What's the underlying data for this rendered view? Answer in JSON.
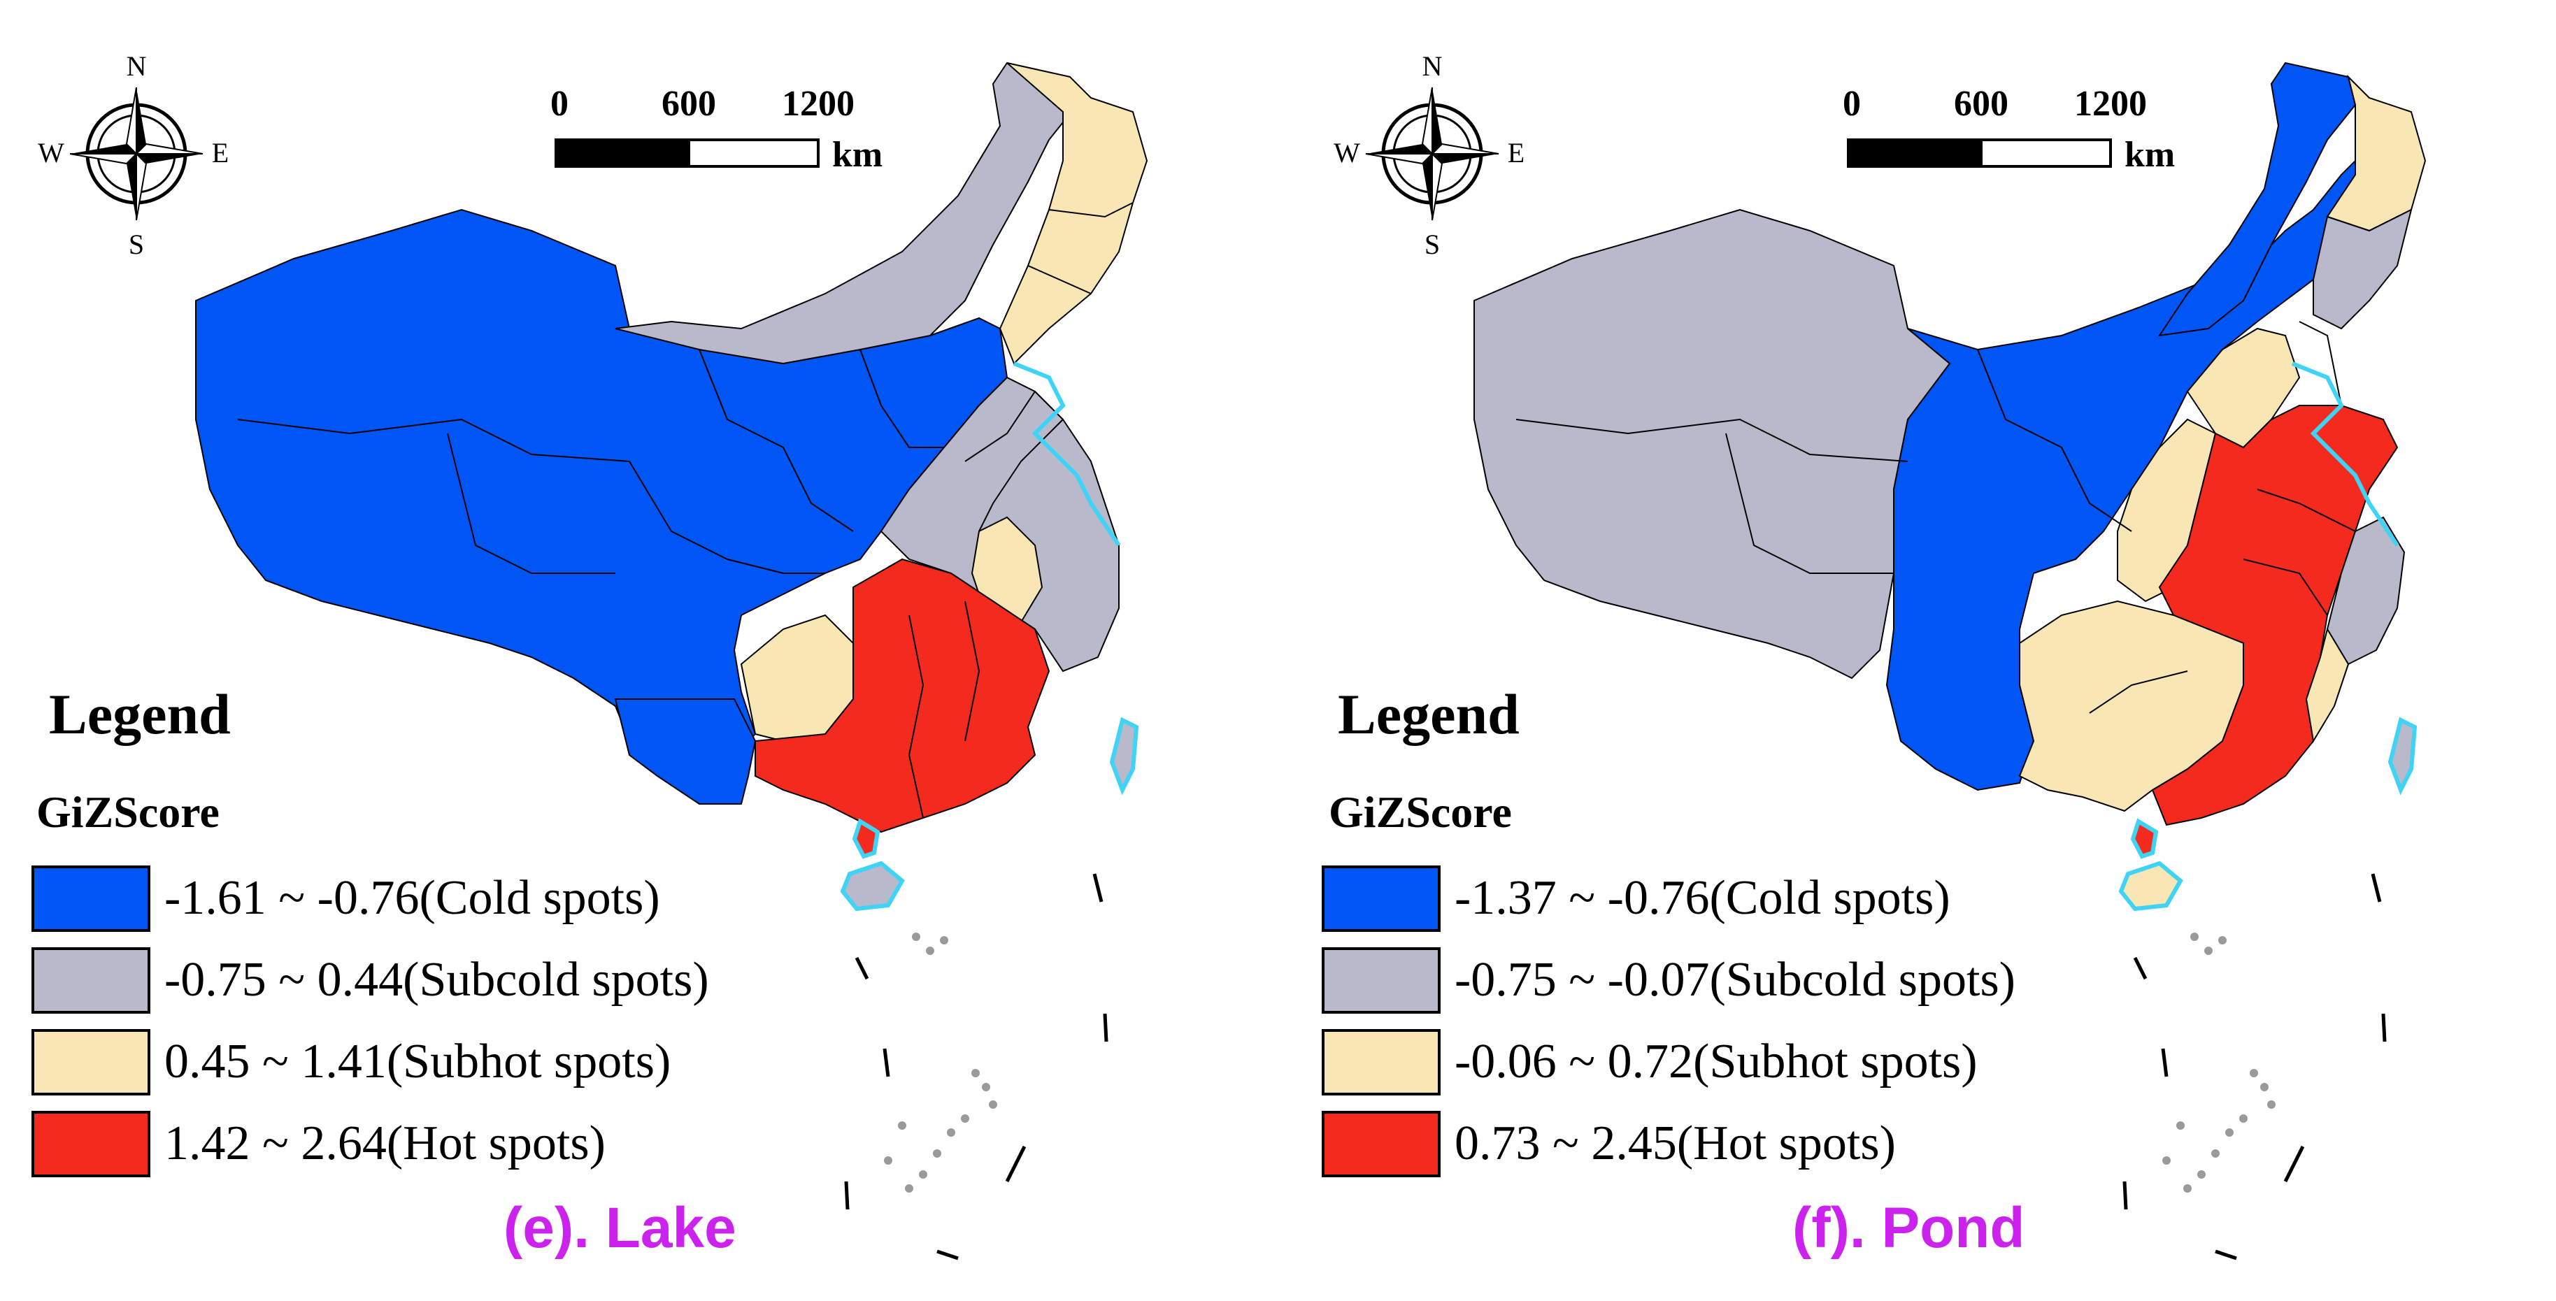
{
  "panels": [
    {
      "caption": "(e). Lake",
      "legend": {
        "title": "Legend",
        "subtitle": "GiZScore",
        "items": [
          {
            "label": "-1.61 ~ -0.76(Cold spots)",
            "color": "#0055f5"
          },
          {
            "label": "-0.75 ~ 0.44(Subcold spots)",
            "color": "#b9b9cc"
          },
          {
            "label": "0.45 ~ 1.41(Subhot spots)",
            "color": "#f8e6b4"
          },
          {
            "label": "1.42 ~ 2.64(Hot spots)",
            "color": "#f52a1f"
          }
        ]
      },
      "scale_bar": {
        "ticks": [
          "0",
          "600",
          "1200"
        ],
        "unit": "km"
      },
      "compass": {
        "n": "N",
        "s": "S",
        "e": "E",
        "w": "W"
      }
    },
    {
      "caption": "(f). Pond",
      "legend": {
        "title": "Legend",
        "subtitle": "GiZScore",
        "items": [
          {
            "label": "-1.37 ~ -0.76(Cold spots)",
            "color": "#0055f5"
          },
          {
            "label": "-0.75 ~ -0.07(Subcold spots)",
            "color": "#b9b9cc"
          },
          {
            "label": "-0.06 ~ 0.72(Subhot spots)",
            "color": "#f8e6b4"
          },
          {
            "label": "0.73 ~ 2.45(Hot spots)",
            "color": "#f52a1f"
          }
        ]
      },
      "scale_bar": {
        "ticks": [
          "0",
          "600",
          "1200"
        ],
        "unit": "km"
      },
      "compass": {
        "n": "N",
        "s": "S",
        "e": "E",
        "w": "W"
      }
    }
  ],
  "colors": {
    "cold": "#0055f5",
    "subcold": "#b9b9cc",
    "subhot": "#f8e6b4",
    "hot": "#f52a1f",
    "coast": "#3fd3f5",
    "caption": "#cc22ee"
  }
}
